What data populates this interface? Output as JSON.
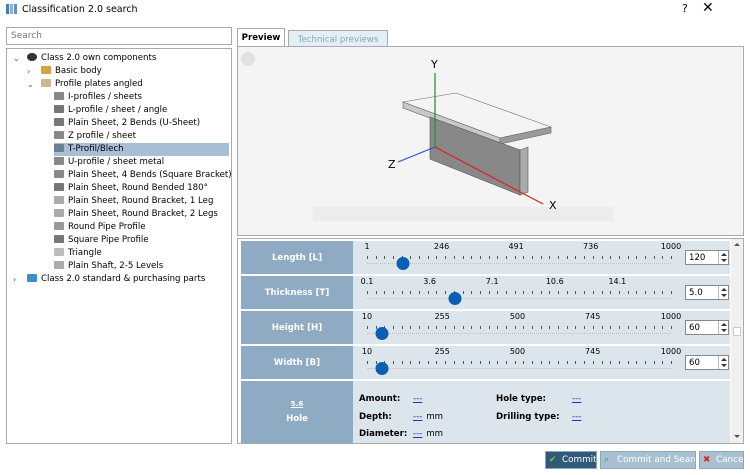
{
  "window": {
    "title": "Classification 2.0 search",
    "help": "?",
    "close": "✕"
  },
  "search": {
    "placeholder": "Search",
    "value": ""
  },
  "tree": [
    {
      "label": "Class 2.0 own components",
      "level": 0,
      "expanded": true,
      "icon": "gear-disc-icon",
      "color": "#333"
    },
    {
      "label": "Basic body",
      "level": 1,
      "expanded": false,
      "icon": "dots-grid-icon",
      "color": "#d9a040"
    },
    {
      "label": "Profile plates angled",
      "level": 1,
      "expanded": true,
      "icon": "profile-folder-icon",
      "color": "#c8b890"
    },
    {
      "label": "I-profiles / sheets",
      "level": 2,
      "icon": "part-icon",
      "color": "#888"
    },
    {
      "label": "L-profile / sheet / angle",
      "level": 2,
      "icon": "part-icon",
      "color": "#777"
    },
    {
      "label": "Plain Sheet, 2 Bends (U-Sheet)",
      "level": 2,
      "icon": "part-icon",
      "color": "#777"
    },
    {
      "label": "Z profile / sheet",
      "level": 2,
      "icon": "part-icon",
      "color": "#888"
    },
    {
      "label": "T-Profil/Blech",
      "level": 2,
      "icon": "part-icon",
      "color": "#6a7f95",
      "selected": true
    },
    {
      "label": "U-profile / sheet metal",
      "level": 2,
      "icon": "part-icon",
      "color": "#888"
    },
    {
      "label": "Plain Sheet, 4 Bends (Square Bracket)",
      "level": 2,
      "icon": "part-icon",
      "color": "#888"
    },
    {
      "label": "Plain Sheet, Round Bended 180°",
      "level": 2,
      "icon": "part-icon",
      "color": "#777"
    },
    {
      "label": "Plain Sheet, Round Bracket, 1 Leg",
      "level": 2,
      "icon": "part-icon",
      "color": "#aaa"
    },
    {
      "label": "Plain Sheet, Round Bracket, 2 Legs",
      "level": 2,
      "icon": "part-icon",
      "color": "#aaa"
    },
    {
      "label": "Round Pipe Profile",
      "level": 2,
      "icon": "part-icon",
      "color": "#999"
    },
    {
      "label": "Square Pipe Profile",
      "level": 2,
      "icon": "part-icon",
      "color": "#777"
    },
    {
      "label": "Triangle",
      "level": 2,
      "icon": "part-icon",
      "color": "#bbb"
    },
    {
      "label": "Plain Shaft, 2-5 Levels",
      "level": 2,
      "icon": "part-icon",
      "color": "#aaa"
    },
    {
      "label": "Class 2.0 standard & purchasing parts",
      "level": 0,
      "expanded": false,
      "icon": "folder-icon",
      "color": "#3a8fd0"
    }
  ],
  "tabs": [
    {
      "label": "Preview",
      "active": true
    },
    {
      "label": "Technical previews",
      "active": false
    }
  ],
  "preview": {
    "axes": {
      "x": "X",
      "y": "Y",
      "z": "Z"
    }
  },
  "params": [
    {
      "label": "Length [L]",
      "ticks": [
        "1",
        "246",
        "491",
        "736",
        "1000"
      ],
      "min": 1,
      "max": 1000,
      "value": "120"
    },
    {
      "label": "Thickness [T]",
      "ticks": [
        "0.1",
        "3.6",
        "7.1",
        "10.6",
        "14.1"
      ],
      "min": 0.1,
      "max": 17.1,
      "value": "5.0"
    },
    {
      "label": "Height [H]",
      "ticks": [
        "10",
        "255",
        "500",
        "745",
        "1000"
      ],
      "min": 10,
      "max": 1000,
      "value": "60"
    },
    {
      "label": "Width [B]",
      "ticks": [
        "10",
        "255",
        "500",
        "745",
        "1000"
      ],
      "min": 10,
      "max": 1000,
      "value": "60"
    }
  ],
  "hole": {
    "label": "Hole",
    "icon_text": "5.6",
    "amount_label": "Amount:",
    "amount_value": "---",
    "hole_type_label": "Hole type:",
    "hole_type_value": "---",
    "depth_label": "Depth:",
    "depth_value": "---",
    "depth_unit": "mm",
    "drilling_type_label": "Drilling type:",
    "drilling_type_value": "---",
    "diameter_label": "Diameter:",
    "diameter_value": "---",
    "diameter_unit": "mm"
  },
  "buttons": {
    "commit": "Commit",
    "commit_search": "Commit and Search",
    "cancel": "Cancel"
  },
  "colors": {
    "label_bg": "#8fabc4",
    "thumb": "#0a5fb4",
    "commit_bg": "#2f5a7a"
  }
}
